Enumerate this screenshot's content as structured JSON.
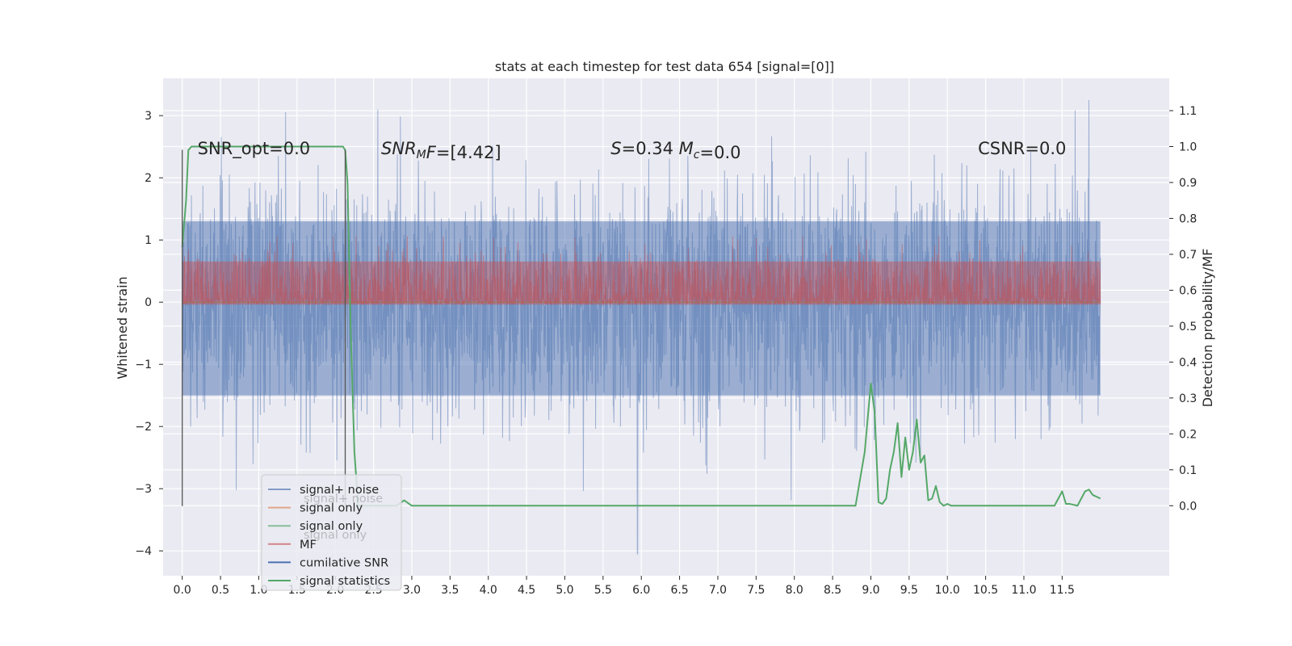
{
  "chart_data": {
    "type": "line",
    "title": "stats at each timestep for test data 654 [signal=[0]]",
    "ylabel": "Whitened strain",
    "y2label": "Detection probability/MF",
    "xlim": [
      -0.25,
      12.9
    ],
    "ylim": [
      -4.4,
      3.6
    ],
    "y2lim": [
      -0.195,
      1.19
    ],
    "x_ticks": [
      "0.0",
      "0.5",
      "1.0",
      "1.5",
      "2.0",
      "2.5",
      "3.0",
      "3.5",
      "4.0",
      "4.5",
      "5.0",
      "5.5",
      "6.0",
      "6.5",
      "7.0",
      "7.5",
      "8.0",
      "8.5",
      "9.0",
      "9.5",
      "10.0",
      "10.5",
      "11.0",
      "11.5"
    ],
    "y_ticks": [
      "−4",
      "−3",
      "−2",
      "−1",
      "0",
      "1",
      "2",
      "3"
    ],
    "y2_ticks": [
      "0.0",
      "0.1",
      "0.2",
      "0.3",
      "0.4",
      "0.5",
      "0.6",
      "0.7",
      "0.8",
      "0.9",
      "1.0",
      "1.1"
    ],
    "grid": true,
    "legend_position": "lower-left",
    "legend_back_texts": [
      "signal+ noise",
      "signal only"
    ],
    "annotations": [
      {
        "x": 0.2,
        "y": 2.38,
        "parts": [
          {
            "t": "SNR_opt=0.0"
          }
        ]
      },
      {
        "x": 2.6,
        "y": 2.38,
        "parts": [
          {
            "t": "SNR",
            "i": true
          },
          {
            "t": "M",
            "i": true,
            "sub": true
          },
          {
            "t": "F",
            "i": true
          },
          {
            "t": "=[4.42]"
          }
        ]
      },
      {
        "x": 5.6,
        "y": 2.38,
        "parts": [
          {
            "t": "S",
            "i": true
          },
          {
            "t": "=0.34   "
          },
          {
            "t": "M",
            "i": true
          },
          {
            "t": "c",
            "i": true,
            "sub": true
          },
          {
            "t": "=0.0"
          }
        ]
      },
      {
        "x": 10.4,
        "y": 2.38,
        "parts": [
          {
            "t": "CSNR=0.0"
          }
        ]
      }
    ],
    "vlines": [
      {
        "x": 0.0,
        "y0": -3.28,
        "y1": 2.45
      },
      {
        "x": 2.13,
        "y0": -3.28,
        "y1": 2.45
      }
    ],
    "series": [
      {
        "name": "signal+ noise",
        "color": "#4c72b0",
        "axis": "left",
        "kind": "noise",
        "x_range": [
          0,
          12
        ],
        "n": 2400,
        "core_sigma": 0.95,
        "envelope_hi": 1.3,
        "envelope_lo": -1.5,
        "max": 3.25,
        "min": -4.05,
        "note_points": [
          [
            5.95,
            -4.05
          ],
          [
            11.85,
            3.25
          ]
        ]
      },
      {
        "name": "signal only",
        "color": "#dd8452",
        "axis": "left",
        "x": [
          0,
          12
        ],
        "y": [
          0,
          0
        ]
      },
      {
        "name": "signal only",
        "color": "#55a868",
        "axis": "left",
        "x": [
          0,
          12
        ],
        "y": [
          0,
          0
        ]
      },
      {
        "name": "MF",
        "color": "#c44e52",
        "axis": "right",
        "kind": "noise",
        "x_range": [
          0,
          12
        ],
        "n": 2400,
        "base": 0.56,
        "band_hi": 0.72,
        "max": 0.75
      },
      {
        "name": "cumilative SNR",
        "color": "#4c72b0",
        "axis": "right",
        "x": [],
        "y": []
      },
      {
        "name": "signal statistics",
        "color": "#55a868",
        "axis": "right",
        "x": [
          0.0,
          0.05,
          0.08,
          0.12,
          0.2,
          0.5,
          1.0,
          1.5,
          1.9,
          2.1,
          2.13,
          2.16,
          2.2,
          2.25,
          2.3,
          2.6,
          2.8,
          2.9,
          3.0,
          3.5,
          4.0,
          5.0,
          6.0,
          7.0,
          8.0,
          8.5,
          8.8,
          8.92,
          8.97,
          9.0,
          9.05,
          9.1,
          9.15,
          9.2,
          9.25,
          9.3,
          9.35,
          9.4,
          9.45,
          9.5,
          9.55,
          9.6,
          9.65,
          9.7,
          9.75,
          9.8,
          9.85,
          9.9,
          9.95,
          10.0,
          10.05,
          10.1,
          10.2,
          10.3,
          10.5,
          11.0,
          11.4,
          11.5,
          11.55,
          11.6,
          11.7,
          11.8,
          11.85,
          11.9,
          12.0
        ],
        "y": [
          0.72,
          0.85,
          0.99,
          1.0,
          1.0,
          1.0,
          1.0,
          1.0,
          1.0,
          1.0,
          0.99,
          0.9,
          0.5,
          0.15,
          0.0,
          0.0,
          0.0,
          0.015,
          0.0,
          0.0,
          0.0,
          0.0,
          0.0,
          0.0,
          0.0,
          0.0,
          0.0,
          0.15,
          0.27,
          0.34,
          0.26,
          0.01,
          0.005,
          0.02,
          0.1,
          0.15,
          0.23,
          0.08,
          0.19,
          0.1,
          0.15,
          0.24,
          0.12,
          0.14,
          0.015,
          0.02,
          0.055,
          0.01,
          0.0,
          0.005,
          0.0,
          0.0,
          0.0,
          0.0,
          0.0,
          0.0,
          0.0,
          0.04,
          0.005,
          0.005,
          0.0,
          0.04,
          0.045,
          0.03,
          0.02
        ]
      }
    ]
  }
}
